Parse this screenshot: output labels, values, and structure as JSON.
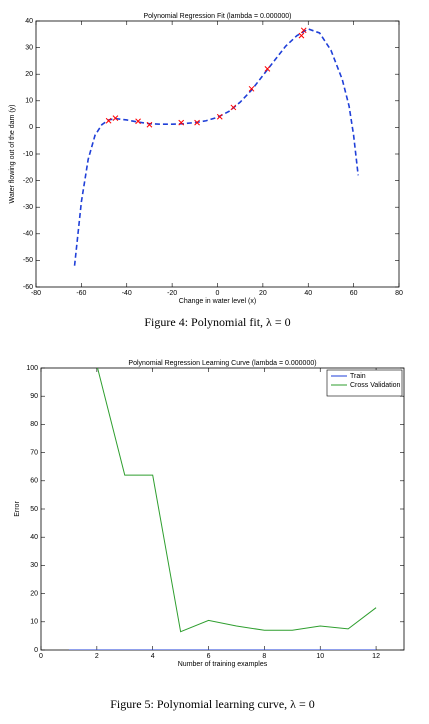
{
  "chart_data": [
    {
      "type": "scatter",
      "title": "Polynomial Regression Fit (lambda = 0.000000)",
      "xlabel": "Change in water level (x)",
      "ylabel": "Water flowing out of the dam (y)",
      "xlim": [
        -80,
        80
      ],
      "xticks": [
        -80,
        -60,
        -40,
        -20,
        0,
        20,
        40,
        60,
        80
      ],
      "ylim": [
        -60,
        40
      ],
      "yticks": [
        -60,
        -50,
        -40,
        -30,
        -20,
        -10,
        0,
        10,
        20,
        30,
        40
      ],
      "points": {
        "color": "#ff0000",
        "x": [
          -48,
          -45,
          -35,
          -30,
          -16,
          -9,
          1,
          7,
          15,
          22,
          37,
          38
        ],
        "y": [
          2.5,
          3.5,
          2.3,
          1,
          1.8,
          1.8,
          4,
          7.5,
          14.5,
          22,
          34.5,
          36.5
        ]
      },
      "fit": {
        "color": "#1f3fd8",
        "x": [
          -63,
          -60,
          -57,
          -54,
          -51,
          -48,
          -45,
          -40,
          -35,
          -30,
          -25,
          -20,
          -15,
          -10,
          -5,
          0,
          5,
          10,
          15,
          20,
          25,
          30,
          35,
          40,
          45,
          50,
          55,
          58,
          60,
          62
        ],
        "y": [
          -52,
          -28,
          -12,
          -3,
          1,
          2.8,
          3.3,
          2.8,
          2,
          1.4,
          1.2,
          1.2,
          1.4,
          1.8,
          2.5,
          3.8,
          6,
          9.5,
          14,
          19.5,
          25,
          30.5,
          34.5,
          37,
          35.5,
          29,
          18,
          8,
          -3,
          -18
        ]
      },
      "caption": "Figure 4: Polynomial fit, λ = 0"
    },
    {
      "type": "line",
      "title": "Polynomial Regression Learning Curve (lambda = 0.000000)",
      "xlabel": "Number of training examples",
      "ylabel": "Error",
      "xlim": [
        0,
        13
      ],
      "xticks": [
        0,
        2,
        4,
        6,
        8,
        10,
        12
      ],
      "ylim": [
        0,
        100
      ],
      "yticks": [
        0,
        10,
        20,
        30,
        40,
        50,
        60,
        70,
        80,
        90,
        100
      ],
      "legend": "northeast",
      "x": [
        1,
        2,
        3,
        4,
        5,
        6,
        7,
        8,
        9,
        10,
        11,
        12
      ],
      "series": [
        {
          "name": "Train",
          "color": "#1f3fd8",
          "values": [
            0,
            0,
            0,
            0,
            0,
            0,
            0,
            0,
            0,
            0,
            0,
            0
          ]
        },
        {
          "name": "Cross Validation",
          "color": "#2e9e2e",
          "values": [
            null,
            101,
            62,
            62,
            6.5,
            10.5,
            8.5,
            7,
            7,
            8.5,
            7.5,
            15
          ]
        }
      ],
      "caption": "Figure 5: Polynomial learning curve, λ = 0"
    }
  ]
}
